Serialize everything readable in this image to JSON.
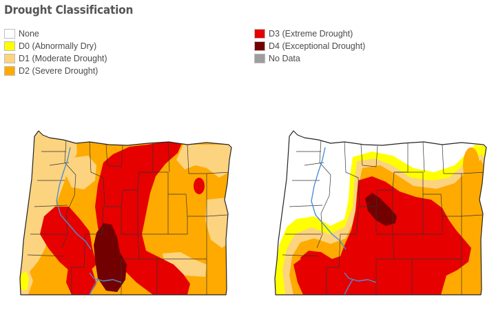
{
  "title": "Drought Classification",
  "legend": [
    {
      "label": "None",
      "color": "#ffffff"
    },
    {
      "label": "D0 (Abnormally Dry)",
      "color": "#ffff00"
    },
    {
      "label": "D1 (Moderate Drought)",
      "color": "#fcd37f"
    },
    {
      "label": "D2 (Severe Drought)",
      "color": "#ffaa00"
    },
    {
      "label": "D3 (Extreme Drought)",
      "color": "#e60000"
    },
    {
      "label": "D4 (Exceptional Drought)",
      "color": "#730000"
    },
    {
      "label": "No Data",
      "color": "#9e9e9e"
    }
  ],
  "colors": {
    "none": "#ffffff",
    "d0": "#ffff00",
    "d1": "#fcd37f",
    "d2": "#ffaa00",
    "d3": "#e60000",
    "d4": "#730000",
    "water": "#4a8fd8",
    "border": "#222222"
  },
  "maps": [
    {
      "name": "oregon-drought-map-left",
      "region": "Oregon"
    },
    {
      "name": "oregon-drought-map-right",
      "region": "Oregon"
    }
  ]
}
